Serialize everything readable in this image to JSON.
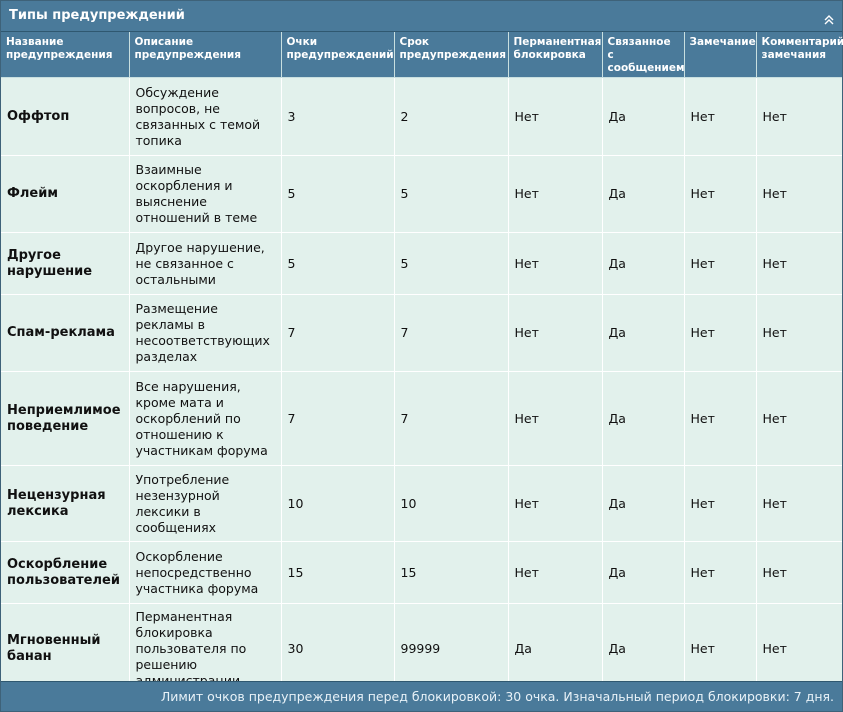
{
  "panel": {
    "title": "Типы предупреждений",
    "collapse_icon": "double-chevron-up-icon"
  },
  "table": {
    "headers": [
      "Название предупреждения",
      "Описание предупреждения",
      "Очки предупреждений",
      "Срок предупреждения",
      "Перманентная блокировка",
      "Связанное с сообщением",
      "Замечание",
      "Комментарий замечания"
    ],
    "rows": [
      [
        "Оффтоп",
        "Обсуждение вопросов, не связанных с темой топика",
        "3",
        "2",
        "Нет",
        "Да",
        "Нет",
        "Нет"
      ],
      [
        "Флейм",
        "Взаимные оскорбления и выяснение отношений в теме",
        "5",
        "5",
        "Нет",
        "Да",
        "Нет",
        "Нет"
      ],
      [
        "Другое нарушение",
        "Другое нарушение, не связанное с остальными",
        "5",
        "5",
        "Нет",
        "Да",
        "Нет",
        "Нет"
      ],
      [
        "Спам-реклама",
        "Размещение рекламы в несоответствующих разделах",
        "7",
        "7",
        "Нет",
        "Да",
        "Нет",
        "Нет"
      ],
      [
        "Неприемлимое поведение",
        "Все нарушения, кроме мата и оскорблений по отношению к участникам форума",
        "7",
        "7",
        "Нет",
        "Да",
        "Нет",
        "Нет"
      ],
      [
        "Нецензурная лексика",
        "Употребление незензурной лексики в сообщениях",
        "10",
        "10",
        "Нет",
        "Да",
        "Нет",
        "Нет"
      ],
      [
        "Оскорбление пользователей",
        "Оскорбление непосредственно участника форума",
        "15",
        "15",
        "Нет",
        "Да",
        "Нет",
        "Нет"
      ],
      [
        "Мгновенный банан",
        "Перманентная блокировка пользователя по решению администрации",
        "30",
        "99999",
        "Да",
        "Да",
        "Нет",
        "Нет"
      ]
    ]
  },
  "footer": {
    "text": "Лимит очков предупреждения перед блокировкой: 30 очка. Изначальный период блокировки: 7 дня."
  }
}
